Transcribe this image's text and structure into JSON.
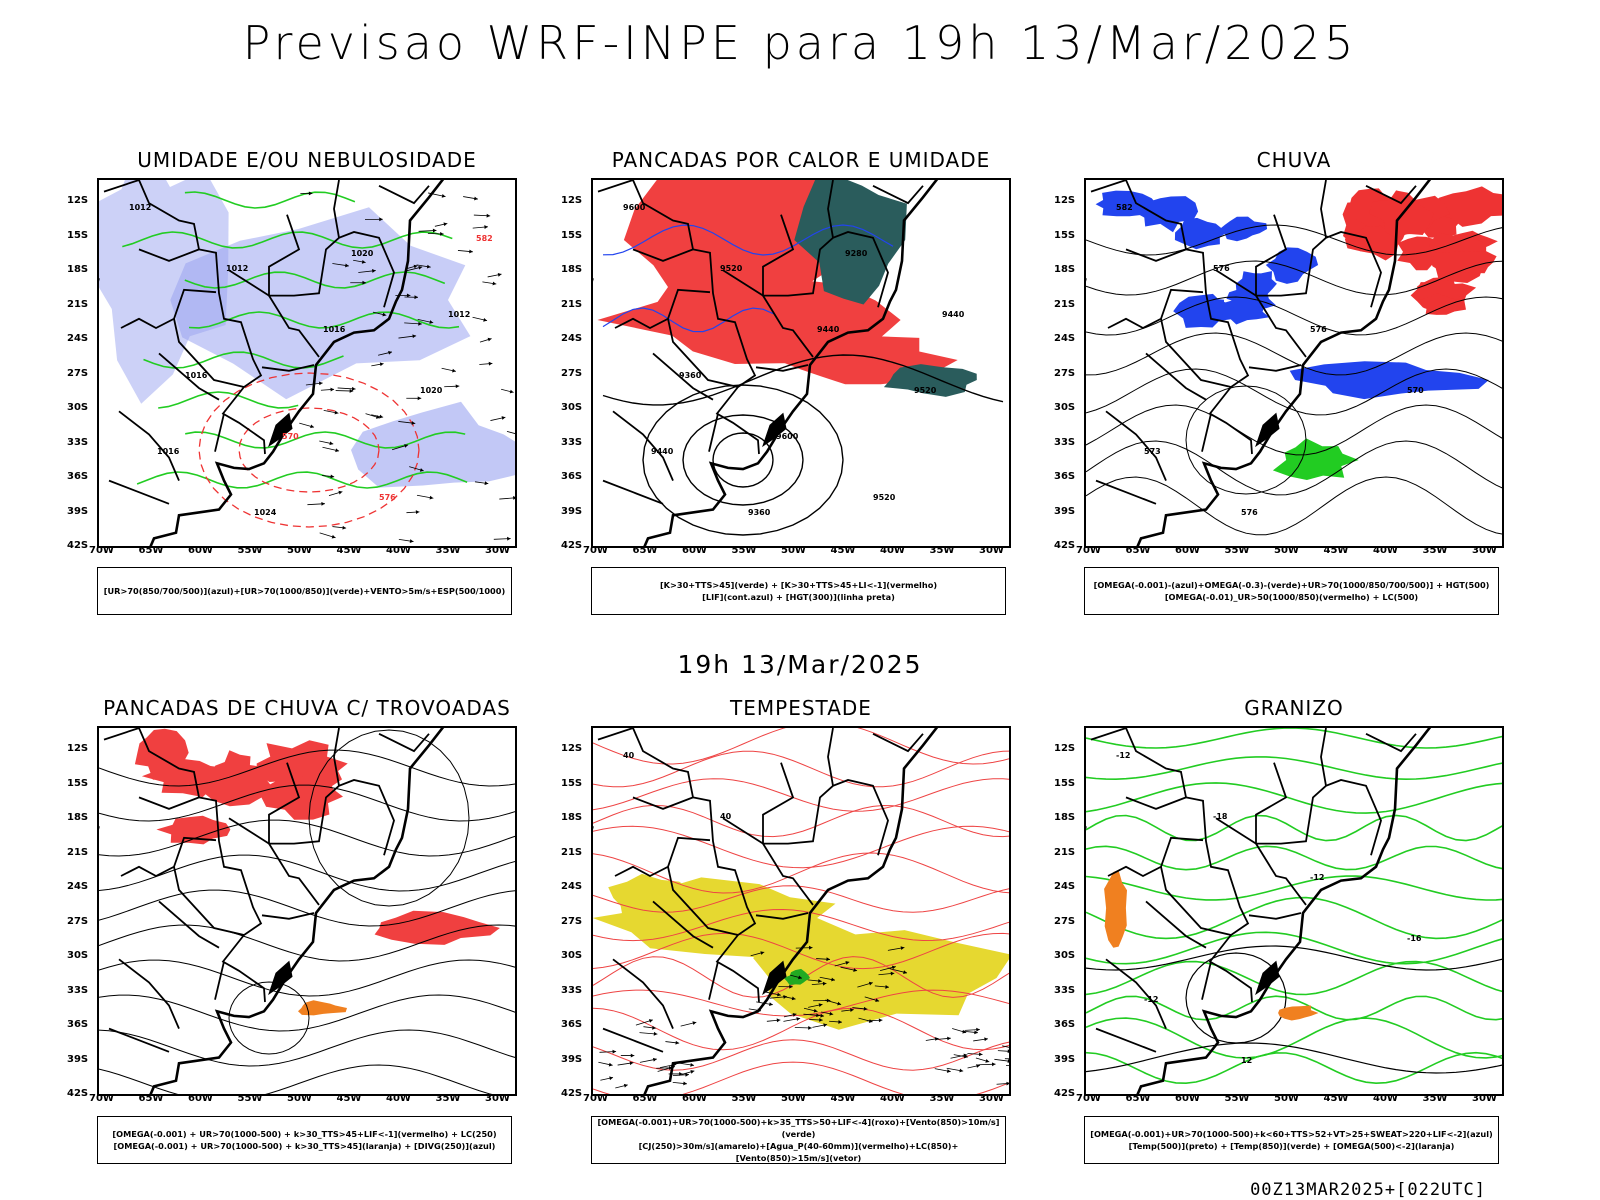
{
  "title": "Previsao WRF-INPE  para 19h 13/Mar/2025",
  "mid_title": "19h 13/Mar/2025",
  "footer": "00Z13MAR2025+[022UTC]",
  "lat_labels": [
    "12S",
    "15S",
    "18S",
    "21S",
    "24S",
    "27S",
    "30S",
    "33S",
    "36S",
    "39S",
    "42S"
  ],
  "lon_labels": [
    "70W",
    "65W",
    "60W",
    "55W",
    "50W",
    "45W",
    "40W",
    "35W",
    "30W"
  ],
  "panels": [
    {
      "title": "UMIDADE E/OU NEBULOSIDADE",
      "legend": [
        "[UR>70(850/700/500)](azul)+[UR>70(1000/850)](verde)+VENTO>5m/s+ESP(500/1000)"
      ],
      "labels": [
        "1012",
        "1012",
        "1016",
        "1020",
        "1016",
        "1024",
        "1020",
        "1012",
        "1016",
        "570",
        "576",
        "582"
      ],
      "colors": {
        "fill": "#9aa4f0",
        "line": "#22cc22",
        "accent": "#ee3333"
      }
    },
    {
      "title": "PANCADAS POR CALOR E UMIDADE",
      "legend": [
        "[K>30+TTS>45](verde) + [K>30+TTS>45+LI<-1](vermelho)",
        "[LIF](cont.azul) + [HGT(300)](linha preta)"
      ],
      "labels": [
        "9600",
        "9520",
        "9440",
        "9520",
        "9440",
        "9360",
        "9280",
        "9440",
        "9360",
        "9600",
        "9520"
      ],
      "colors": {
        "fill": "#f04040",
        "line": "#2a5c5c",
        "accent": "#2244ee"
      }
    },
    {
      "title": "CHUVA",
      "legend": [
        "[OMEGA(-0.001)-(azul)+OMEGA(-0.3)-(verde)+UR>70(1000/850/700/500)] + HGT(500)",
        "[OMEGA(-0.01)_UR>50(1000/850)(vermelho) + LC(500)"
      ],
      "labels": [
        "582",
        "576",
        "576",
        "570",
        "573",
        "576"
      ],
      "colors": {
        "fill": "#2244ee",
        "line": "#22cc22",
        "accent": "#ee3333"
      }
    },
    {
      "title": "PANCADAS DE CHUVA C/ TROVOADAS",
      "legend": [
        "[OMEGA(-0.001) + UR>70(1000-500) + k>30_TTS>45+LIF<-1](vermelho) + LC(250)",
        "[OMEGA(-0.001) + UR>70(1000-500) + k>30_TTS>45](laranja) + [DIVG(250)](azul)"
      ],
      "labels": [],
      "colors": {
        "fill": "#f04040",
        "line": "#f08020",
        "accent": "#2244ee"
      }
    },
    {
      "title": "TEMPESTADE",
      "legend": [
        "[OMEGA(-0.001)+UR>70(1000-500)+k>35_TTS>50+LIF<-4](roxo)+[Vento(850)>10m/s](verde)",
        "[CJ(250)>30m/s](amarelo)+[Agua_P(40-60mm)](vermelho)+LC(850)+[Vento(850)>15m/s](vetor)"
      ],
      "labels": [
        "40",
        "40"
      ],
      "colors": {
        "fill": "#e6d830",
        "line": "#ee4444",
        "accent": "#22aa22"
      }
    },
    {
      "title": "GRANIZO",
      "legend": [
        "[OMEGA(-0.001)+UR>70(1000-500)+k<60+TTS>52+VT>25+SWEAT>220+LIF<-2](azul)",
        "[Temp(500)](preto) + [Temp(850)](verde) + [OMEGA(500)<-2](laranja)"
      ],
      "labels": [
        "-12",
        "-18",
        "-12",
        "-16",
        "-12",
        "12"
      ],
      "colors": {
        "fill": "#f08020",
        "line": "#22cc22",
        "accent": "#2244ee"
      }
    }
  ]
}
